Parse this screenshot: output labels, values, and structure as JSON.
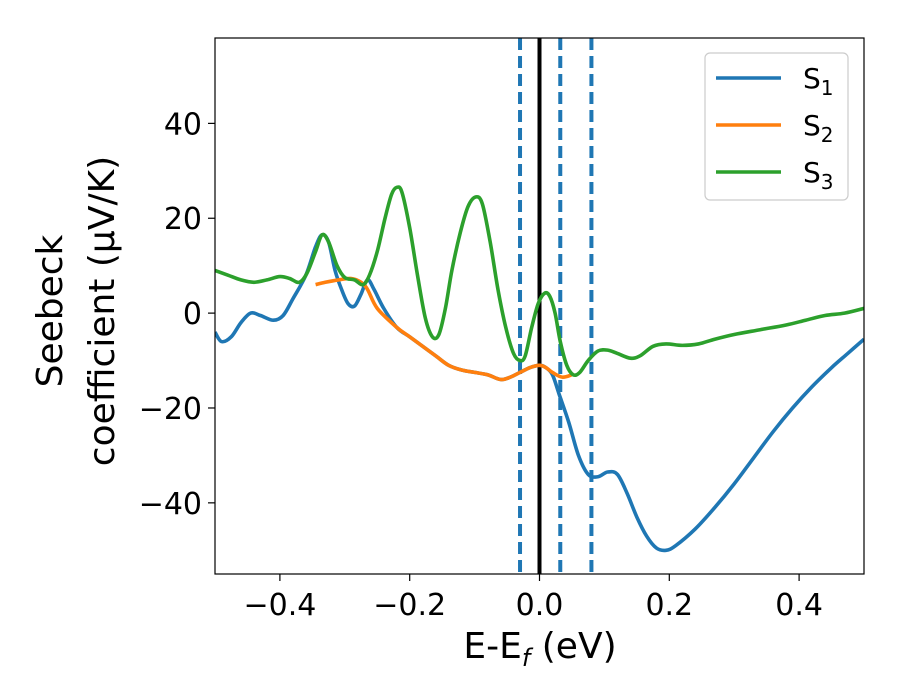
{
  "chart_data": {
    "type": "line",
    "title": "",
    "xlabel": {
      "main": "E-E",
      "sub": "f",
      "unit": " (eV)"
    },
    "ylabel": {
      "line1": "Seebeck",
      "line2": "coefficient  (μV/K)"
    },
    "xlim": [
      -0.5,
      0.5
    ],
    "ylim": [
      -55,
      58
    ],
    "xticks": [
      -0.4,
      -0.2,
      0.0,
      0.2,
      0.4
    ],
    "xtick_labels": [
      "−0.4",
      "−0.2",
      "0.0",
      "0.2",
      "0.4"
    ],
    "yticks": [
      -40,
      -20,
      0,
      20,
      40
    ],
    "ytick_labels": [
      "−40",
      "−20",
      "0",
      "20",
      "40"
    ],
    "grid": false,
    "legend_position": "top-right",
    "vlines": [
      {
        "x": -0.03,
        "style": "dashed",
        "color": "#1f77b4"
      },
      {
        "x": 0.0,
        "style": "solid",
        "color": "#000000"
      },
      {
        "x": 0.032,
        "style": "dashed",
        "color": "#1f77b4"
      },
      {
        "x": 0.08,
        "style": "dashed",
        "color": "#1f77b4"
      }
    ],
    "series": [
      {
        "name": "S",
        "sub": "1",
        "color": "#1f77b4",
        "points": [
          [
            -0.5,
            -4
          ],
          [
            -0.49,
            -6
          ],
          [
            -0.475,
            -5
          ],
          [
            -0.46,
            -2
          ],
          [
            -0.445,
            0
          ],
          [
            -0.43,
            -0.5
          ],
          [
            -0.41,
            -1.5
          ],
          [
            -0.395,
            -0.5
          ],
          [
            -0.38,
            3
          ],
          [
            -0.36,
            8
          ],
          [
            -0.345,
            14
          ],
          [
            -0.335,
            16.5
          ],
          [
            -0.325,
            15
          ],
          [
            -0.315,
            9
          ],
          [
            -0.305,
            5
          ],
          [
            -0.295,
            2
          ],
          [
            -0.285,
            1.5
          ],
          [
            -0.275,
            4
          ],
          [
            -0.265,
            7
          ],
          [
            -0.255,
            5
          ],
          [
            -0.24,
            1
          ],
          [
            -0.22,
            -3
          ],
          [
            -0.2,
            -5
          ],
          [
            -0.18,
            -7
          ],
          [
            -0.16,
            -9
          ],
          [
            -0.14,
            -11
          ],
          [
            -0.12,
            -12
          ],
          [
            -0.1,
            -12.5
          ],
          [
            -0.08,
            -13
          ],
          [
            -0.06,
            -14
          ],
          [
            -0.045,
            -13.5
          ],
          [
            -0.03,
            -12.5
          ],
          [
            -0.015,
            -11.5
          ],
          [
            0.0,
            -11
          ],
          [
            0.01,
            -11.5
          ],
          [
            0.02,
            -13
          ],
          [
            0.03,
            -17
          ],
          [
            0.045,
            -23
          ],
          [
            0.06,
            -30
          ],
          [
            0.075,
            -34
          ],
          [
            0.09,
            -34.5
          ],
          [
            0.105,
            -33.5
          ],
          [
            0.12,
            -34
          ],
          [
            0.135,
            -38
          ],
          [
            0.15,
            -43
          ],
          [
            0.165,
            -47
          ],
          [
            0.18,
            -49.5
          ],
          [
            0.195,
            -50
          ],
          [
            0.21,
            -49
          ],
          [
            0.24,
            -45.5
          ],
          [
            0.27,
            -41
          ],
          [
            0.3,
            -36
          ],
          [
            0.33,
            -30.5
          ],
          [
            0.36,
            -25
          ],
          [
            0.39,
            -20
          ],
          [
            0.42,
            -15.5
          ],
          [
            0.45,
            -11.5
          ],
          [
            0.475,
            -8.5
          ],
          [
            0.5,
            -5.5
          ]
        ]
      },
      {
        "name": "S",
        "sub": "2",
        "color": "#ff7f0e",
        "points": [
          [
            -0.345,
            6
          ],
          [
            -0.33,
            6.5
          ],
          [
            -0.31,
            7
          ],
          [
            -0.29,
            7.3
          ],
          [
            -0.275,
            6.5
          ],
          [
            -0.265,
            5
          ],
          [
            -0.25,
            1
          ],
          [
            -0.22,
            -3
          ],
          [
            -0.2,
            -5
          ],
          [
            -0.18,
            -7
          ],
          [
            -0.16,
            -9
          ],
          [
            -0.14,
            -11
          ],
          [
            -0.12,
            -12
          ],
          [
            -0.1,
            -12.5
          ],
          [
            -0.08,
            -13
          ],
          [
            -0.06,
            -14
          ],
          [
            -0.045,
            -13.5
          ],
          [
            -0.03,
            -12.5
          ],
          [
            -0.015,
            -11.5
          ],
          [
            0.0,
            -11
          ],
          [
            0.01,
            -11.5
          ],
          [
            0.02,
            -12.5
          ],
          [
            0.035,
            -13.5
          ],
          [
            0.05,
            -13
          ]
        ]
      },
      {
        "name": "S",
        "sub": "3",
        "color": "#2ca02c",
        "points": [
          [
            -0.5,
            9
          ],
          [
            -0.48,
            8
          ],
          [
            -0.46,
            7
          ],
          [
            -0.44,
            6.5
          ],
          [
            -0.42,
            7
          ],
          [
            -0.4,
            7.7
          ],
          [
            -0.385,
            7.3
          ],
          [
            -0.37,
            6.5
          ],
          [
            -0.358,
            8.5
          ],
          [
            -0.345,
            13
          ],
          [
            -0.335,
            16.5
          ],
          [
            -0.325,
            15
          ],
          [
            -0.312,
            10
          ],
          [
            -0.3,
            7.5
          ],
          [
            -0.285,
            7
          ],
          [
            -0.272,
            6
          ],
          [
            -0.262,
            8
          ],
          [
            -0.25,
            13
          ],
          [
            -0.238,
            20
          ],
          [
            -0.228,
            25
          ],
          [
            -0.22,
            26.5
          ],
          [
            -0.212,
            25.5
          ],
          [
            -0.2,
            18
          ],
          [
            -0.188,
            8
          ],
          [
            -0.176,
            -1
          ],
          [
            -0.165,
            -5
          ],
          [
            -0.155,
            -4.5
          ],
          [
            -0.145,
            1
          ],
          [
            -0.135,
            9
          ],
          [
            -0.122,
            17
          ],
          [
            -0.11,
            22.5
          ],
          [
            -0.098,
            24.5
          ],
          [
            -0.088,
            23
          ],
          [
            -0.076,
            15
          ],
          [
            -0.064,
            5
          ],
          [
            -0.052,
            -3
          ],
          [
            -0.04,
            -8.5
          ],
          [
            -0.03,
            -10
          ],
          [
            -0.022,
            -9
          ],
          [
            -0.012,
            -3
          ],
          [
            -0.002,
            2
          ],
          [
            0.008,
            4.2
          ],
          [
            0.016,
            3.5
          ],
          [
            0.024,
            0
          ],
          [
            0.032,
            -6
          ],
          [
            0.042,
            -11
          ],
          [
            0.052,
            -13
          ],
          [
            0.062,
            -12.5
          ],
          [
            0.075,
            -10
          ],
          [
            0.09,
            -8
          ],
          [
            0.105,
            -7.8
          ],
          [
            0.12,
            -8.5
          ],
          [
            0.14,
            -9.5
          ],
          [
            0.155,
            -9
          ],
          [
            0.175,
            -7
          ],
          [
            0.195,
            -6.5
          ],
          [
            0.22,
            -6.8
          ],
          [
            0.245,
            -6.5
          ],
          [
            0.27,
            -5.5
          ],
          [
            0.3,
            -4.5
          ],
          [
            0.34,
            -3.5
          ],
          [
            0.38,
            -2.5
          ],
          [
            0.41,
            -1.5
          ],
          [
            0.44,
            -0.5
          ],
          [
            0.47,
            0
          ],
          [
            0.5,
            1
          ]
        ]
      }
    ]
  }
}
